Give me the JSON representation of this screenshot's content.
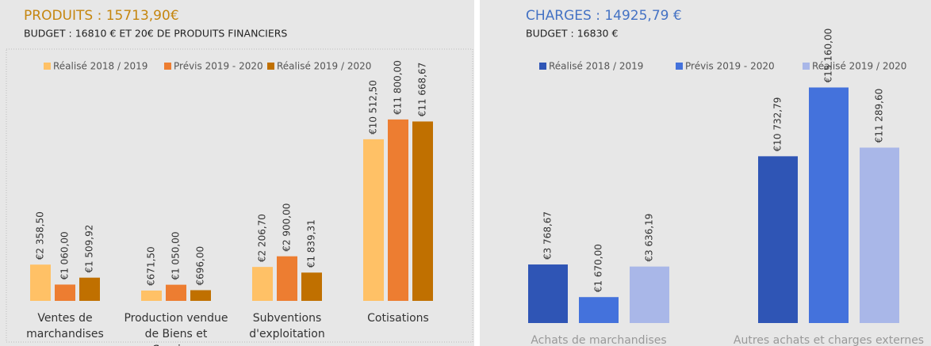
{
  "chart_data": [
    {
      "type": "bar",
      "title": "PRODUITS : 15713,90€",
      "subtitle": "BUDGET : 16810 € ET 20€ DE PRODUITS FINANCIERS",
      "categories": [
        "Ventes de marchandises",
        "Production vendue de Biens et Services",
        "Subventions d'exploitation",
        "Cotisations"
      ],
      "series": [
        {
          "name": "Réalisé 2018 / 2019",
          "color": "#ffc166",
          "values": [
            2358.5,
            671.5,
            2206.7,
            10512.5
          ],
          "value_labels": [
            "€2 358,50",
            "€671,50",
            "€2 206,70",
            "€10 512,50"
          ]
        },
        {
          "name": "Prévis 2019 - 2020",
          "color": "#ed7d31",
          "values": [
            1060,
            1050,
            2900,
            11800
          ],
          "value_labels": [
            "€1 060,00",
            "€1 050,00",
            "€2 900,00",
            "€11 800,00"
          ]
        },
        {
          "name": "Réalisé 2019 / 2020",
          "color": "#c07000",
          "values": [
            1509.92,
            696,
            1839.31,
            11668.67
          ],
          "value_labels": [
            "€1 509,92",
            "€696,00",
            "€1 839,31",
            "€11 668,67"
          ]
        }
      ],
      "ylim": [
        0,
        12000
      ],
      "title_color": "#c5860f",
      "legend": "top"
    },
    {
      "type": "bar",
      "title": "CHARGES : 14925,79 €",
      "subtitle": "BUDGET : 16830 €",
      "categories": [
        "Achats de marchandises",
        "Autres achats et charges externes"
      ],
      "series": [
        {
          "name": "Réalisé 2018 / 2019",
          "color": "#2f55b5",
          "values": [
            3768.67,
            10732.79
          ],
          "value_labels": [
            "€3 768,67",
            "€10 732,79"
          ]
        },
        {
          "name": "Prévis 2019 - 2020",
          "color": "#4472dc",
          "values": [
            1670,
            15160
          ],
          "value_labels": [
            "€1 670,00",
            "€15 160,00"
          ]
        },
        {
          "name": "Réalisé 2019 / 2020",
          "color": "#a9b7e8",
          "values": [
            3636.19,
            11289.6
          ],
          "value_labels": [
            "€3 636,19",
            "€11 289,60"
          ]
        }
      ],
      "ylim": [
        0,
        16000
      ],
      "title_color": "#4472c4",
      "legend": "top"
    }
  ]
}
